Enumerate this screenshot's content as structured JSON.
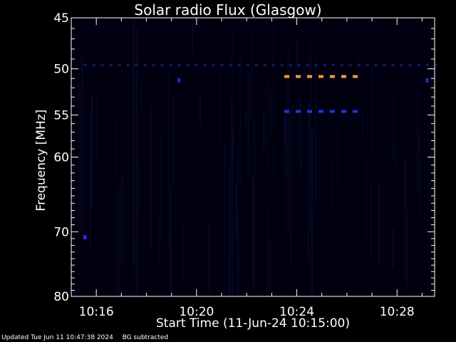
{
  "chart_data": {
    "type": "heatmap",
    "title": "Solar radio Flux (Glasgow)",
    "xlabel": "Start Time (11-Jun-24 10:15:00)",
    "ylabel": "Frequency [MHz]",
    "x_tick_labels": [
      "10:16",
      "10:20",
      "10:24",
      "10:28"
    ],
    "x_tick_minutes": [
      1,
      5,
      9,
      13
    ],
    "y_ticks": [
      45,
      50,
      55,
      60,
      70,
      80
    ],
    "xlim_minutes": [
      0,
      14.5
    ],
    "ylim": [
      45,
      80
    ],
    "features": [
      {
        "kind": "dashed-band",
        "frequency": 50.8,
        "t_start": 8.5,
        "t_end": 11.3,
        "color": "#ff9933"
      },
      {
        "kind": "dashed-band",
        "frequency": 54.6,
        "t_start": 8.5,
        "t_end": 11.3,
        "color": "#2233dd"
      },
      {
        "kind": "dotted-band",
        "frequency": 49.6,
        "t_start": 0.5,
        "t_end": 14.5,
        "color": "#1a1a66"
      },
      {
        "kind": "spot",
        "frequency": 70.8,
        "t": 0.55,
        "color": "#4422ee"
      },
      {
        "kind": "spot",
        "frequency": 51.2,
        "t": 4.3,
        "color": "#3322cc"
      },
      {
        "kind": "spot",
        "frequency": 51.2,
        "t": 14.2,
        "color": "#3322cc"
      }
    ]
  },
  "footer": {
    "updated": "Updated Tue Jun 11 10:47:38 2024",
    "note": "BG subtracted"
  },
  "colors": {
    "background": "#000000",
    "plot_background": "#000010",
    "axis": "#ffffff"
  }
}
